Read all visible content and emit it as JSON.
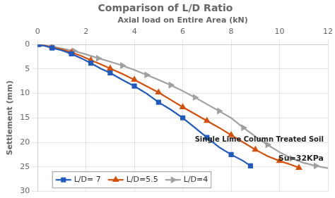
{
  "chart_data": {
    "type": "line",
    "title": "Comparison of L/D Ratio",
    "xlabel": "Axial load on Entire Area (kN)",
    "ylabel": "Settlement (mm)",
    "annotations": [
      "Single Lime Column Treated Soil",
      "Su=32KPa"
    ],
    "xlim": [
      0,
      12
    ],
    "ylim": [
      30,
      0
    ],
    "xticks": [
      0,
      2,
      4,
      6,
      8,
      10,
      12
    ],
    "yticks": [
      0,
      5,
      10,
      15,
      20,
      25,
      30
    ],
    "grid": true,
    "legend": "lower left",
    "series": [
      {
        "name": "L/D= 7",
        "color": "#1f5bbf",
        "marker": "square",
        "x": [
          0.05,
          0.3,
          0.6,
          1.0,
          1.4,
          1.8,
          2.2,
          2.6,
          3.0,
          3.5,
          4.0,
          4.5,
          5.0,
          5.5,
          6.0,
          6.5,
          7.0,
          7.5,
          8.0,
          8.5,
          8.8
        ],
        "values": [
          0.0,
          0.3,
          0.7,
          1.2,
          1.9,
          2.8,
          3.8,
          4.9,
          5.8,
          7.2,
          8.5,
          10.0,
          11.8,
          13.3,
          15.0,
          17.0,
          19.0,
          21.0,
          22.5,
          23.8,
          24.8
        ]
      },
      {
        "name": "L/D=5.5",
        "color": "#d4500a",
        "marker": "triangle-up",
        "x": [
          0.05,
          0.3,
          0.6,
          1.0,
          1.4,
          1.8,
          2.2,
          2.6,
          3.0,
          3.5,
          4.0,
          4.5,
          5.0,
          5.5,
          6.0,
          6.5,
          7.0,
          7.5,
          8.0,
          8.5,
          9.0,
          9.5,
          10.0,
          10.5,
          10.8
        ],
        "values": [
          0.0,
          0.2,
          0.6,
          1.0,
          1.6,
          2.3,
          3.2,
          4.0,
          4.9,
          6.0,
          7.2,
          8.5,
          9.8,
          11.3,
          12.8,
          14.2,
          15.6,
          17.0,
          18.5,
          20.0,
          21.5,
          22.8,
          23.8,
          24.6,
          25.2
        ]
      },
      {
        "name": "L/D=4",
        "color": "#a0a0a0",
        "marker": "triangle-right",
        "x": [
          0.05,
          0.3,
          0.6,
          1.0,
          1.5,
          2.0,
          2.5,
          3.0,
          3.5,
          4.0,
          4.5,
          5.0,
          5.5,
          6.0,
          6.5,
          7.0,
          7.5,
          8.0,
          8.5,
          9.0,
          9.5,
          10.0,
          10.5,
          11.0,
          11.5,
          12.0
        ],
        "values": [
          0.0,
          0.2,
          0.4,
          0.8,
          1.3,
          2.0,
          2.8,
          3.5,
          4.3,
          5.2,
          6.2,
          7.2,
          8.3,
          9.5,
          10.8,
          12.2,
          13.6,
          15.0,
          17.0,
          18.8,
          20.5,
          22.0,
          23.3,
          24.2,
          24.8,
          25.3
        ]
      }
    ]
  }
}
